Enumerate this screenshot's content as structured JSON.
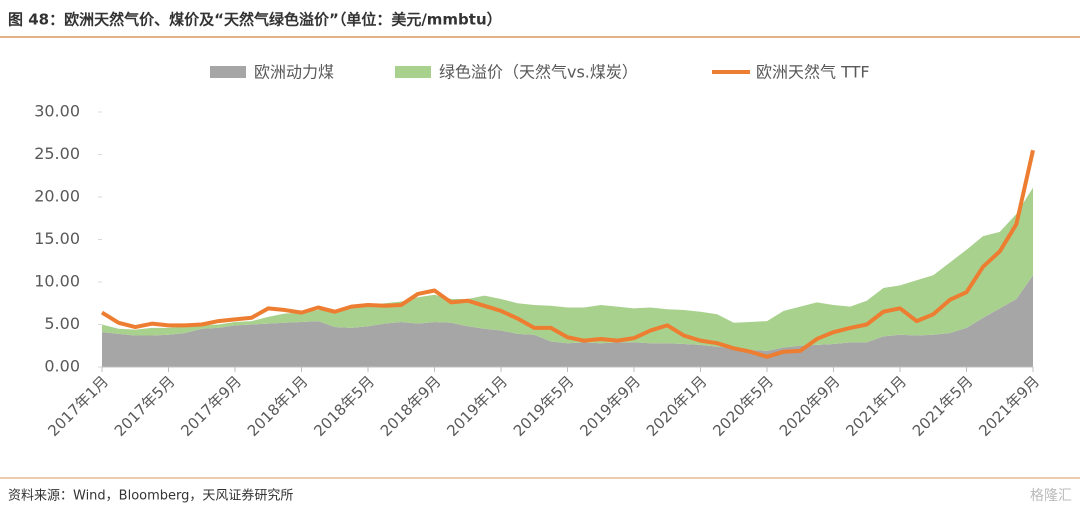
{
  "chart_data": {
    "type": "stacked_area_line",
    "title": "图 48：欧洲天然气价、煤价及“天然气绿色溢价”（单位：美元/mmbtu）",
    "source": "资料来源：Wind，Bloomberg，天风证券研究所",
    "watermark": "格隆汇",
    "categories": [
      "2017年1月",
      null,
      null,
      null,
      "2017年5月",
      null,
      null,
      null,
      "2017年9月",
      null,
      null,
      null,
      "2018年1月",
      null,
      null,
      null,
      "2018年5月",
      null,
      null,
      null,
      "2018年9月",
      null,
      null,
      null,
      "2019年1月",
      null,
      null,
      null,
      "2019年5月",
      null,
      null,
      null,
      "2019年9月",
      null,
      null,
      null,
      "2020年1月",
      null,
      null,
      null,
      "2020年5月",
      null,
      null,
      null,
      "2020年9月",
      null,
      null,
      null,
      "2021年1月",
      null,
      null,
      null,
      "2021年5月",
      null,
      null,
      null,
      "2021年9月"
    ],
    "series": [
      {
        "name": "欧洲动力煤",
        "kind": "area",
        "color": "#a6a6a6",
        "values": [
          4.1,
          3.9,
          3.7,
          3.7,
          3.8,
          4.0,
          4.5,
          4.6,
          4.9,
          5.0,
          5.1,
          5.2,
          5.3,
          5.4,
          4.7,
          4.6,
          4.8,
          5.1,
          5.3,
          5.1,
          5.3,
          5.2,
          4.8,
          4.5,
          4.3,
          3.9,
          3.8,
          3.0,
          2.8,
          2.9,
          2.8,
          2.9,
          2.9,
          2.8,
          2.8,
          2.7,
          2.6,
          2.4,
          2.2,
          2.0,
          1.9,
          2.3,
          2.5,
          2.6,
          2.7,
          2.9,
          2.9,
          3.6,
          3.8,
          3.7,
          3.8,
          4.0,
          4.6,
          5.8,
          6.9,
          8.0,
          10.8
        ]
      },
      {
        "name": "绿色溢价（天然气vs.煤炭）",
        "kind": "area",
        "color": "#a9d18e",
        "values": [
          0.9,
          0.6,
          0.7,
          0.9,
          0.8,
          0.8,
          0.4,
          0.4,
          0.4,
          0.4,
          0.8,
          1.1,
          1.1,
          1.3,
          1.9,
          2.4,
          2.5,
          2.4,
          2.4,
          3.1,
          3.2,
          2.8,
          3.2,
          3.9,
          3.7,
          3.6,
          3.5,
          4.2,
          4.2,
          4.1,
          4.5,
          4.2,
          4.0,
          4.2,
          4.0,
          4.0,
          3.9,
          3.8,
          3.0,
          3.3,
          3.5,
          4.3,
          4.6,
          5.0,
          4.6,
          4.2,
          4.9,
          5.7,
          5.8,
          6.5,
          7.0,
          8.3,
          9.2,
          9.6,
          9.0,
          10.0,
          10.3
        ]
      },
      {
        "name": "欧洲天然气 TTF",
        "kind": "line",
        "color": "#ed7d31",
        "values": [
          6.4,
          5.2,
          4.7,
          5.1,
          4.9,
          4.9,
          5.0,
          5.4,
          5.6,
          5.8,
          6.9,
          6.7,
          6.4,
          7.0,
          6.5,
          7.1,
          7.3,
          7.2,
          7.3,
          8.6,
          9.0,
          7.6,
          7.8,
          7.2,
          6.6,
          5.7,
          4.6,
          4.6,
          3.5,
          3.1,
          3.3,
          3.1,
          3.4,
          4.3,
          4.9,
          3.7,
          3.1,
          2.8,
          2.2,
          1.8,
          1.2,
          1.8,
          1.9,
          3.3,
          4.1,
          4.6,
          5.0,
          6.5,
          6.9,
          5.4,
          6.2,
          7.9,
          8.8,
          11.8,
          13.6,
          16.8,
          25.5
        ]
      }
    ],
    "ylim": [
      0,
      30
    ],
    "yticks": [
      {
        "value": 0,
        "label": "0.00"
      },
      {
        "value": 5,
        "label": "5.00"
      },
      {
        "value": 10,
        "label": "10.00"
      },
      {
        "value": 15,
        "label": "15.00"
      },
      {
        "value": 20,
        "label": "20.00"
      },
      {
        "value": 25,
        "label": "25.00"
      },
      {
        "value": 30,
        "label": "30.00"
      }
    ],
    "legend": "top"
  }
}
